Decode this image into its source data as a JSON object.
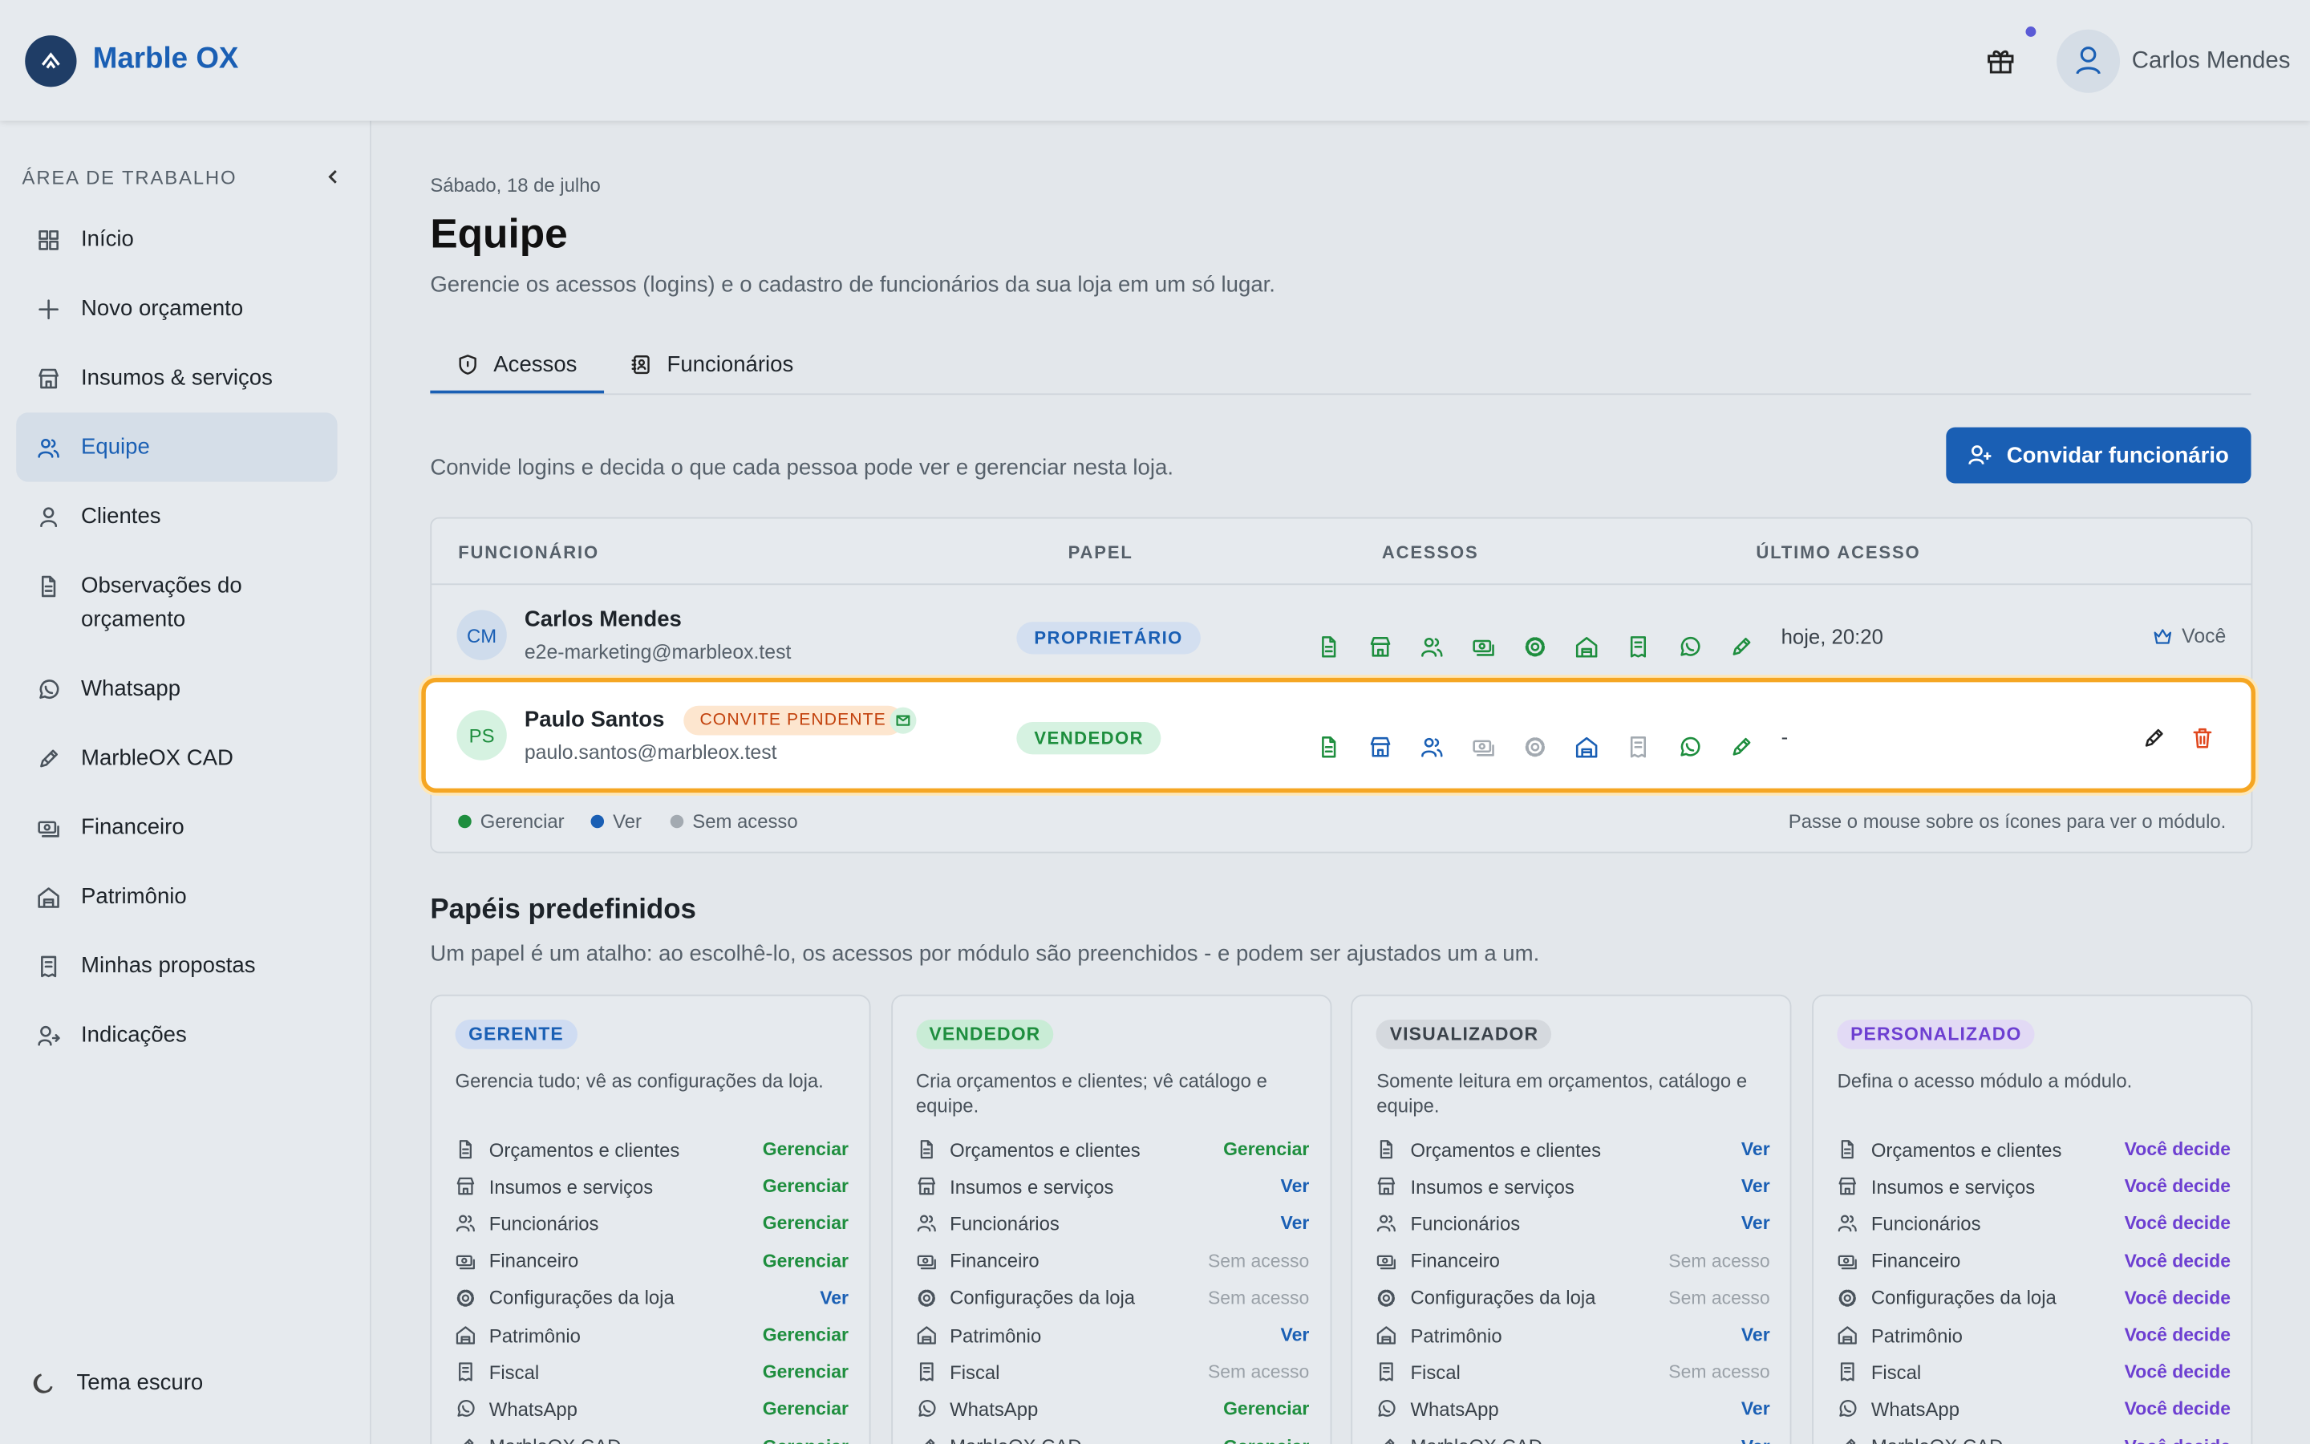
{
  "header": {
    "brand": "Marble OX",
    "user": "Carlos Mendes"
  },
  "sidebar": {
    "section": "ÁREA DE TRABALHO",
    "items": [
      "Início",
      "Novo orçamento",
      "Insumos & serviços",
      "Equipe",
      "Clientes",
      "Observações do orçamento",
      "Whatsapp",
      "MarbleOX CAD",
      "Financeiro",
      "Patrimônio",
      "Minhas propostas",
      "Indicações"
    ],
    "active": 3,
    "theme": "Tema escuro"
  },
  "page": {
    "date": "Sábado, 18 de julho",
    "title": "Equipe",
    "subtitle": "Gerencie os acessos (logins) e o cadastro de funcionários da sua loja em um só lugar.",
    "tabs": [
      "Acessos",
      "Funcionários"
    ],
    "active_tab": 0,
    "intro": "Convide logins e decida o que cada pessoa pode ver e gerenciar nesta loja.",
    "invite_button": "Convidar funcionário"
  },
  "table": {
    "columns": [
      "FUNCIONÁRIO",
      "PAPEL",
      "ACESSOS",
      "ÚLTIMO ACESSO"
    ],
    "rows": [
      {
        "initials": "CM",
        "name": "Carlos Mendes",
        "email": "e2e-marketing@marbleox.test",
        "role": "PROPRIETÁRIO",
        "access_colors": [
          "#1e8e3e",
          "#1e8e3e",
          "#1e8e3e",
          "#1e8e3e",
          "#1e8e3e",
          "#1e8e3e",
          "#1e8e3e",
          "#1e8e3e",
          "#1e8e3e"
        ],
        "last_access": "hoje, 20:20",
        "note": "Você"
      },
      {
        "initials": "PS",
        "name": "Paulo Santos",
        "badge": "CONVITE PENDENTE",
        "email": "paulo.santos@marbleox.test",
        "role": "VENDEDOR",
        "access_colors": [
          "#1e8e3e",
          "#1a5fb4",
          "#1a5fb4",
          "#a3aab1",
          "#a3aab1",
          "#1a5fb4",
          "#a3aab1",
          "#1e8e3e",
          "#1e8e3e"
        ],
        "last_access": "-"
      }
    ],
    "legend": [
      "Gerenciar",
      "Ver",
      "Sem acesso"
    ],
    "legend_colors": [
      "#1e8e3e",
      "#1a5fb4",
      "#a3aab1"
    ],
    "hint": "Passe o mouse sobre os ícones para ver o módulo."
  },
  "roles": {
    "title": "Papéis predefinidos",
    "subtitle": "Um papel é um atalho: ao escolhê-lo, os acessos por módulo são preenchidos - e podem ser ajustados um a um.",
    "modules": [
      "Orçamentos e clientes",
      "Insumos e serviços",
      "Funcionários",
      "Financeiro",
      "Configurações da loja",
      "Patrimônio",
      "Fiscal",
      "WhatsApp",
      "MarbleOX CAD"
    ],
    "cards": [
      {
        "name": "GERENTE",
        "description": "Gerencia tudo; vê as configurações da loja.",
        "access": [
          "Gerenciar",
          "Gerenciar",
          "Gerenciar",
          "Gerenciar",
          "Ver",
          "Gerenciar",
          "Gerenciar",
          "Gerenciar",
          "Gerenciar"
        ],
        "access_colors": [
          "#1e8e3e",
          "#1e8e3e",
          "#1e8e3e",
          "#1e8e3e",
          "#1a5fb4",
          "#1e8e3e",
          "#1e8e3e",
          "#1e8e3e",
          "#1e8e3e"
        ]
      },
      {
        "name": "VENDEDOR",
        "description": "Cria orçamentos e clientes; vê catálogo e equipe.",
        "access": [
          "Gerenciar",
          "Ver",
          "Ver",
          "Sem acesso",
          "Sem acesso",
          "Ver",
          "Sem acesso",
          "Gerenciar",
          "Gerenciar"
        ],
        "access_colors": [
          "#1e8e3e",
          "#1a5fb4",
          "#1a5fb4",
          "#9aa1a8",
          "#9aa1a8",
          "#1a5fb4",
          "#9aa1a8",
          "#1e8e3e",
          "#1e8e3e"
        ]
      },
      {
        "name": "VISUALIZADOR",
        "description": "Somente leitura em orçamentos, catálogo e equipe.",
        "access": [
          "Ver",
          "Ver",
          "Ver",
          "Sem acesso",
          "Sem acesso",
          "Ver",
          "Sem acesso",
          "Ver",
          "Ver"
        ],
        "access_colors": [
          "#1a5fb4",
          "#1a5fb4",
          "#1a5fb4",
          "#9aa1a8",
          "#9aa1a8",
          "#1a5fb4",
          "#9aa1a8",
          "#1a5fb4",
          "#1a5fb4"
        ]
      },
      {
        "name": "PERSONALIZADO",
        "description": "Defina o acesso módulo a módulo.",
        "access": [
          "Você decide",
          "Você decide",
          "Você decide",
          "Você decide",
          "Você decide",
          "Você decide",
          "Você decide",
          "Você decide",
          "Você decide"
        ],
        "access_colors": [
          "#6d3fd1",
          "#6d3fd1",
          "#6d3fd1",
          "#6d3fd1",
          "#6d3fd1",
          "#6d3fd1",
          "#6d3fd1",
          "#6d3fd1",
          "#6d3fd1"
        ]
      }
    ]
  }
}
